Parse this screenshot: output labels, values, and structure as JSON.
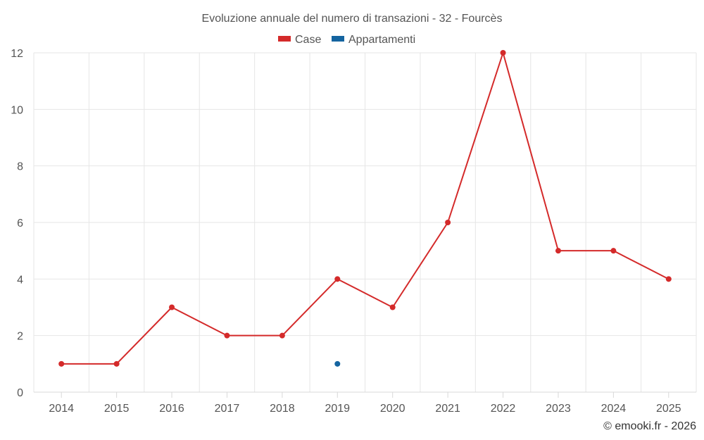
{
  "chart_data": {
    "type": "line",
    "title": "Evoluzione annuale del numero di transazioni - 32 - Fourcès",
    "categories": [
      "2014",
      "2015",
      "2016",
      "2017",
      "2018",
      "2019",
      "2020",
      "2021",
      "2022",
      "2023",
      "2024",
      "2025"
    ],
    "series": [
      {
        "name": "Case",
        "color": "#d42a2a",
        "values": [
          1,
          1,
          3,
          2,
          2,
          4,
          3,
          6,
          12,
          5,
          5,
          4
        ]
      },
      {
        "name": "Appartamenti",
        "color": "#1464a0",
        "values": [
          null,
          null,
          null,
          null,
          null,
          1,
          null,
          null,
          null,
          null,
          null,
          null
        ]
      }
    ],
    "ylim": [
      0,
      12
    ],
    "yticks": [
      0,
      2,
      4,
      6,
      8,
      10,
      12
    ],
    "xlabel": "",
    "ylabel": "",
    "legend_position": "top-center",
    "grid": true
  },
  "credit": "© emooki.fr - 2026"
}
